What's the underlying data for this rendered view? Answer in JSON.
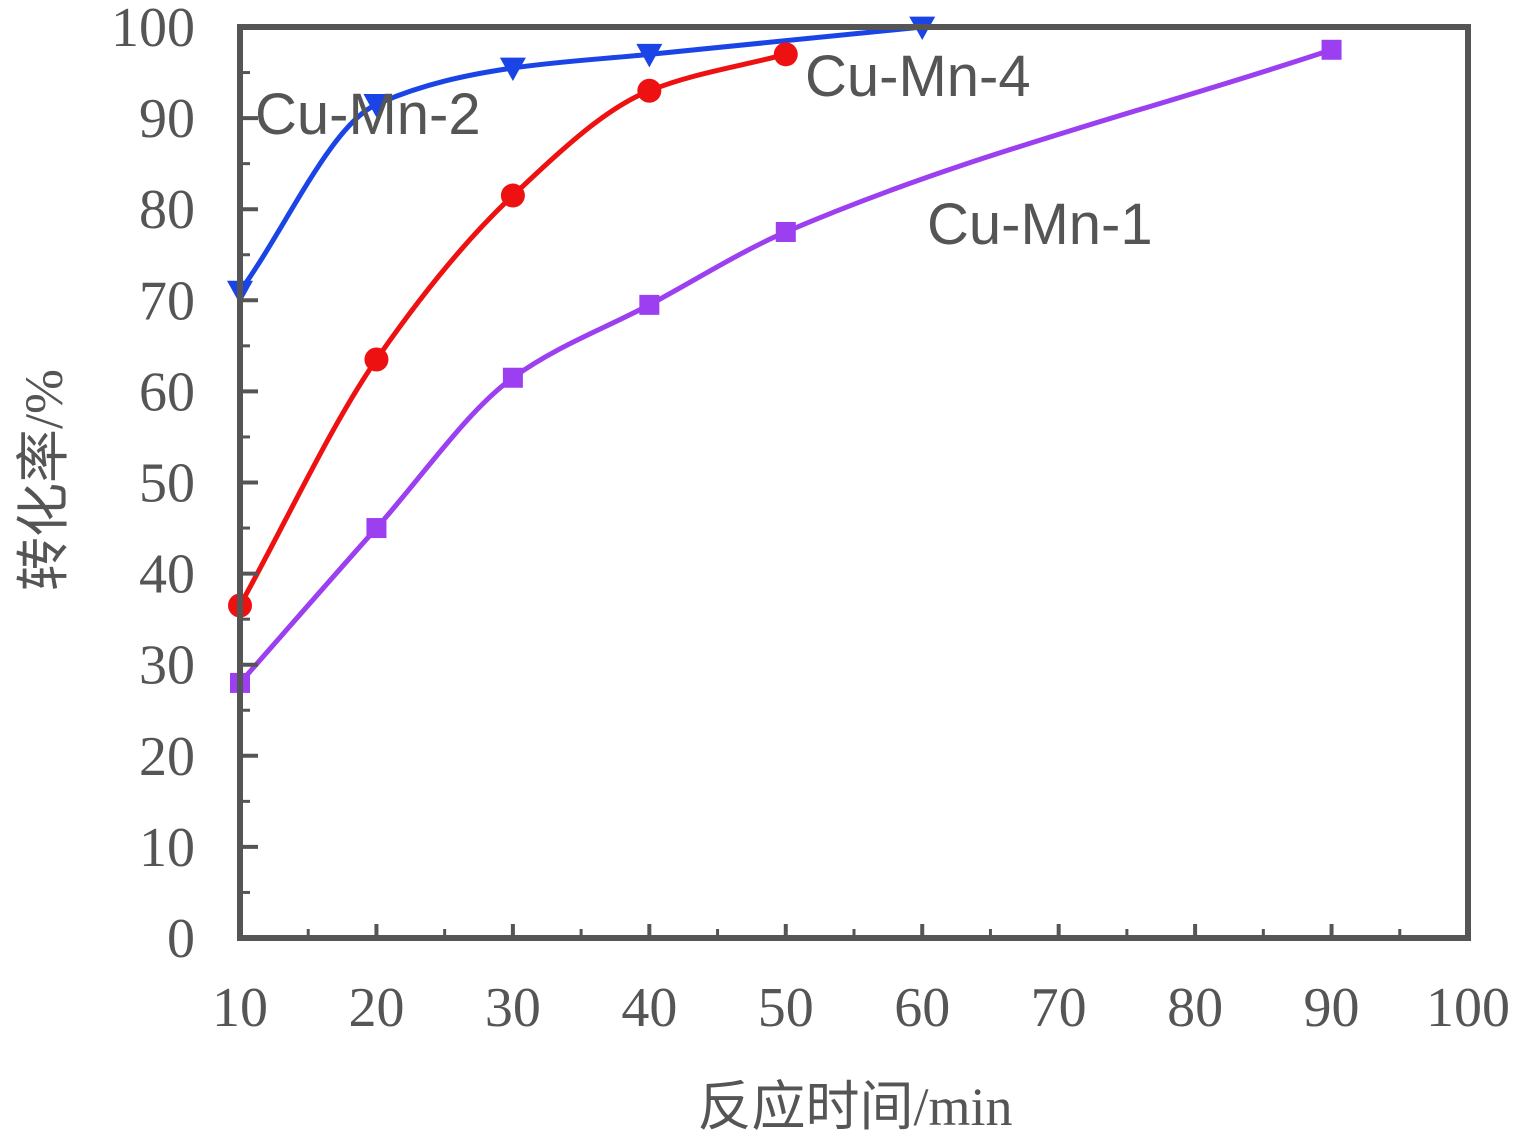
{
  "chart_data": {
    "type": "line",
    "title": "",
    "xlabel": "反应时间/min",
    "ylabel": "转化率/%",
    "xlim": [
      10,
      100
    ],
    "ylim": [
      0,
      100
    ],
    "xticks": [
      10,
      20,
      30,
      40,
      50,
      60,
      70,
      80,
      90,
      100
    ],
    "yticks": [
      0,
      10,
      20,
      30,
      40,
      50,
      60,
      70,
      80,
      90,
      100
    ],
    "grid": false,
    "legend": "none",
    "series": [
      {
        "name": "Cu-Mn-1",
        "color": "#9b3ff0",
        "marker": "square",
        "x": [
          10,
          20,
          30,
          40,
          50,
          90
        ],
        "y": [
          28,
          45,
          61.5,
          69.5,
          77.5,
          97.5
        ]
      },
      {
        "name": "Cu-Mn-2",
        "color": "#1a44e6",
        "marker": "triangle-down",
        "x": [
          10,
          20,
          30,
          40,
          60
        ],
        "y": [
          71,
          91.5,
          95.5,
          97,
          100
        ]
      },
      {
        "name": "Cu-Mn-4",
        "color": "#ee1111",
        "marker": "circle",
        "x": [
          10,
          20,
          30,
          40,
          50
        ],
        "y": [
          36.5,
          63.5,
          81.5,
          93,
          97
        ]
      }
    ]
  }
}
